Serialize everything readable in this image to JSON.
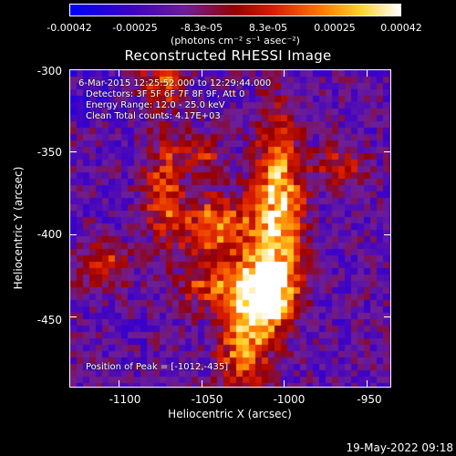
{
  "colorbar": {
    "ticks": [
      "-0.00042",
      "-0.00025",
      "-8.3e-05",
      "8.3e-05",
      "0.00025",
      "0.00042"
    ],
    "unit": "(photons cm⁻² s⁻¹ asec⁻²)",
    "range": [
      -0.00042,
      0.00042
    ]
  },
  "chart_data": {
    "type": "heatmap",
    "title": "Reconstructed RHESSI Image",
    "xlabel": "Heliocentric X (arcsec)",
    "ylabel": "Heliocentric Y (arcsec)",
    "xlim": [
      -1130,
      -935
    ],
    "ylim": [
      -493,
      -300
    ],
    "xticks": [
      -1100,
      -1050,
      -1000,
      -950
    ],
    "yticks": [
      -300,
      -350,
      -400,
      -450
    ],
    "xtick_labels": [
      "-1100",
      "-1050",
      "-1000",
      "-950"
    ],
    "ytick_labels": [
      "-300",
      "-350",
      "-400",
      "-450"
    ],
    "colormap": "rhessi-blue-white-red-yellow-white",
    "peak": [
      -1012,
      -435
    ],
    "annotations": {
      "time": "6-Mar-2015 12:25:52.000 to 12:29:44.000",
      "detectors": "Detectors: 3F 5F 6F 7F 8F 9F, Att 0",
      "energy": "Energy Range: 12.0 - 25.0 keV",
      "clean": "Clean     Total counts: 4.17E+03",
      "peak_label": "Position of Peak = [-1012,-435]"
    }
  },
  "footer": {
    "date": "19-May-2022 09:18"
  }
}
